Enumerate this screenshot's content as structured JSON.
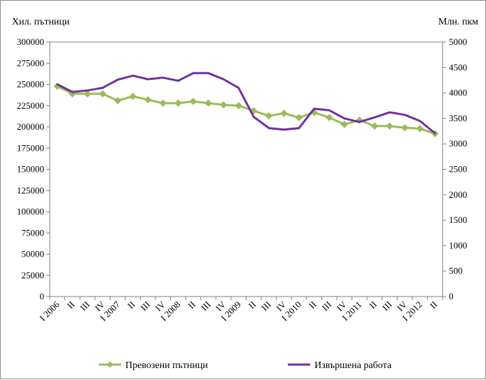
{
  "chart_data": {
    "type": "line",
    "ylabel_left": "Хил. пътници",
    "ylabel_right": "Млн. пкм",
    "ylim_left": [
      0,
      300000
    ],
    "ylim_right": [
      0,
      5000
    ],
    "yticks_left": [
      "0",
      "25000",
      "50000",
      "75000",
      "100000",
      "125000",
      "150000",
      "175000",
      "200000",
      "225000",
      "250000",
      "275000",
      "300000"
    ],
    "yticks_right": [
      "0",
      "500",
      "1000",
      "1500",
      "2000",
      "2500",
      "3000",
      "3500",
      "4000",
      "4500",
      "5000"
    ],
    "categories": [
      "I 2006",
      "II",
      "III",
      "IV",
      "I 2007",
      "II",
      "III",
      "IV",
      "I 2008",
      "II",
      "III",
      "IV",
      "I 2009",
      "II",
      "III",
      "IV",
      "I 2010",
      "II",
      "III",
      "IV",
      "I 2011",
      "II",
      "III",
      "IV",
      "I 2012",
      "II"
    ],
    "series": [
      {
        "name": "Превозени пътници",
        "axis": "left",
        "color": "#9bbb59",
        "marker": "diamond",
        "values": [
          248000,
          239000,
          239000,
          239000,
          231000,
          236000,
          232000,
          228000,
          228000,
          230000,
          228000,
          226000,
          225000,
          219000,
          213000,
          216000,
          211000,
          217000,
          211000,
          203000,
          208000,
          201000,
          201000,
          199000,
          198000,
          192000
        ]
      },
      {
        "name": "Извършена работа",
        "axis": "right",
        "color": "#7030a0",
        "marker": "none",
        "values": [
          4170,
          4020,
          4050,
          4100,
          4260,
          4340,
          4270,
          4300,
          4240,
          4390,
          4390,
          4270,
          4100,
          3530,
          3310,
          3280,
          3310,
          3690,
          3660,
          3500,
          3430,
          3520,
          3620,
          3570,
          3450,
          3210
        ]
      }
    ],
    "legend_position": "bottom"
  }
}
